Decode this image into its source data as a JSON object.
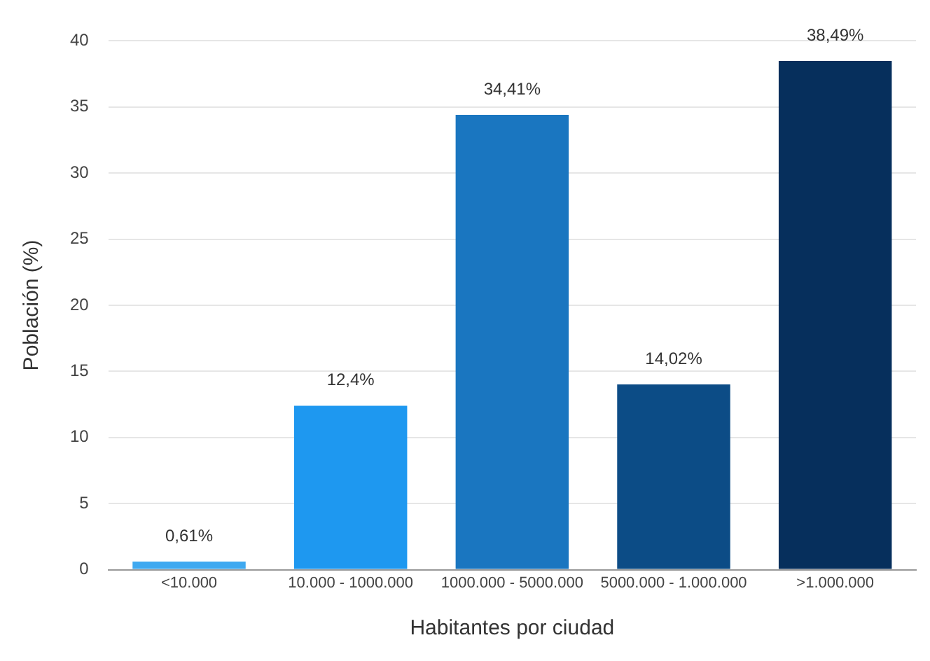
{
  "chart_data": {
    "type": "bar",
    "xlabel": "Habitantes por ciudad",
    "ylabel": "Población (%)",
    "categories": [
      "<10.000",
      "10.000 - 1000.000",
      "1000.000 - 5000.000",
      "5000.000 - 1.000.000",
      ">1.000.000"
    ],
    "values": [
      0.61,
      12.4,
      34.41,
      14.02,
      38.49
    ],
    "colors": [
      "#3fa9f0",
      "#1e98f0",
      "#1a76c0",
      "#0c4c86",
      "#062f5c"
    ],
    "value_labels": [
      "0,61%",
      "12,4%",
      "34,41%",
      "14,02%",
      "38,49%"
    ],
    "ylim": [
      0,
      40
    ],
    "yticks": [
      0,
      5,
      10,
      15,
      20,
      25,
      30,
      35,
      40
    ],
    "grid": "y",
    "legend": false
  }
}
